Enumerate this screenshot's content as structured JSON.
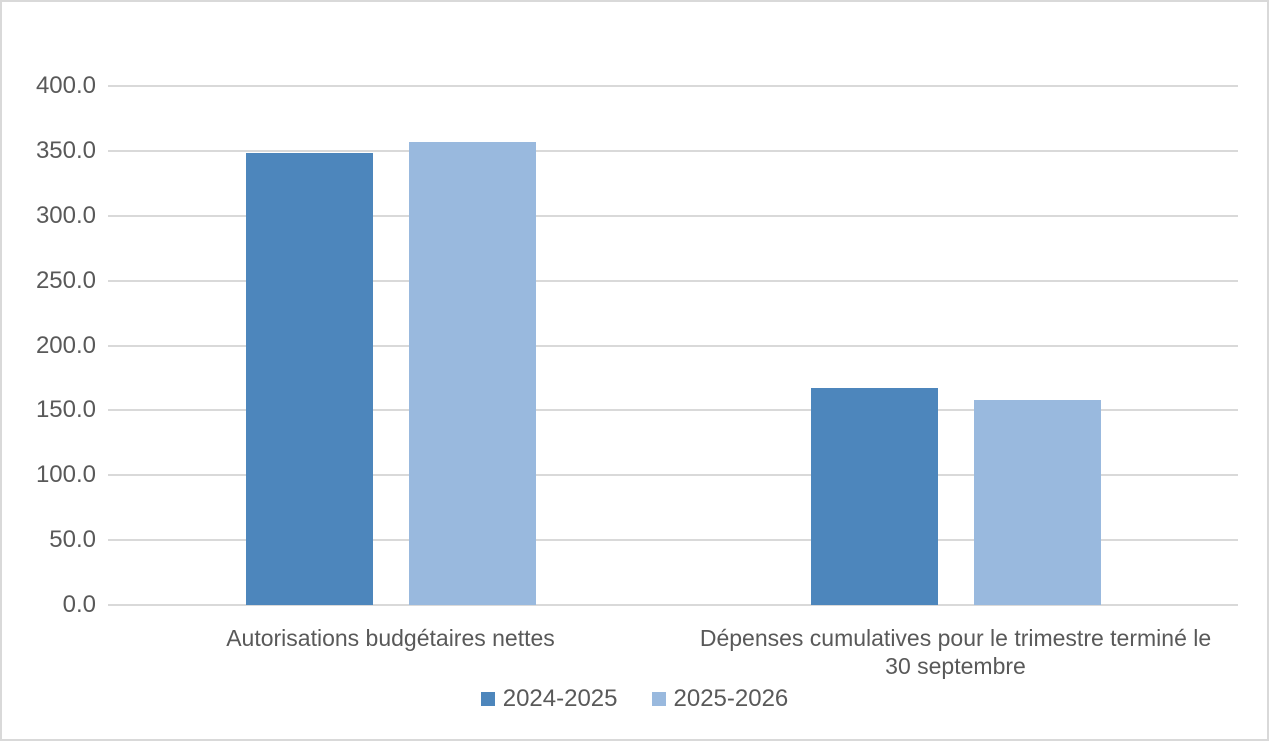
{
  "chart_data": {
    "type": "bar",
    "title": "",
    "xlabel": "",
    "ylabel": "",
    "categories": [
      {
        "label": "Autorisations budgétaires nettes",
        "lines": [
          "Autorisations budgétaires nettes"
        ]
      },
      {
        "label": "Dépenses cumulatives pour le trimestre terminé le 30 septembre",
        "lines": [
          "Dépenses cumulatives pour le trimestre terminé le",
          "30 septembre"
        ]
      }
    ],
    "series": [
      {
        "name": "2024-2025",
        "color": "#4d86bc",
        "values": [
          348.0,
          167.0
        ]
      },
      {
        "name": "2025-2026",
        "color": "#99b9de",
        "values": [
          357.0,
          158.0
        ]
      }
    ],
    "ylim": [
      0,
      400
    ],
    "ytick_step": 50,
    "ytick_labels": [
      "0.0",
      "50.0",
      "100.0",
      "150.0",
      "200.0",
      "250.0",
      "300.0",
      "350.0",
      "400.0"
    ],
    "grid": true,
    "legend_position": "bottom"
  },
  "colors": {
    "background": "#ffffff",
    "border": "#d9d9d9",
    "gridline": "#d9d9d9",
    "text": "#595959",
    "series_dark": "#4d86bc",
    "series_light": "#99b9de"
  }
}
